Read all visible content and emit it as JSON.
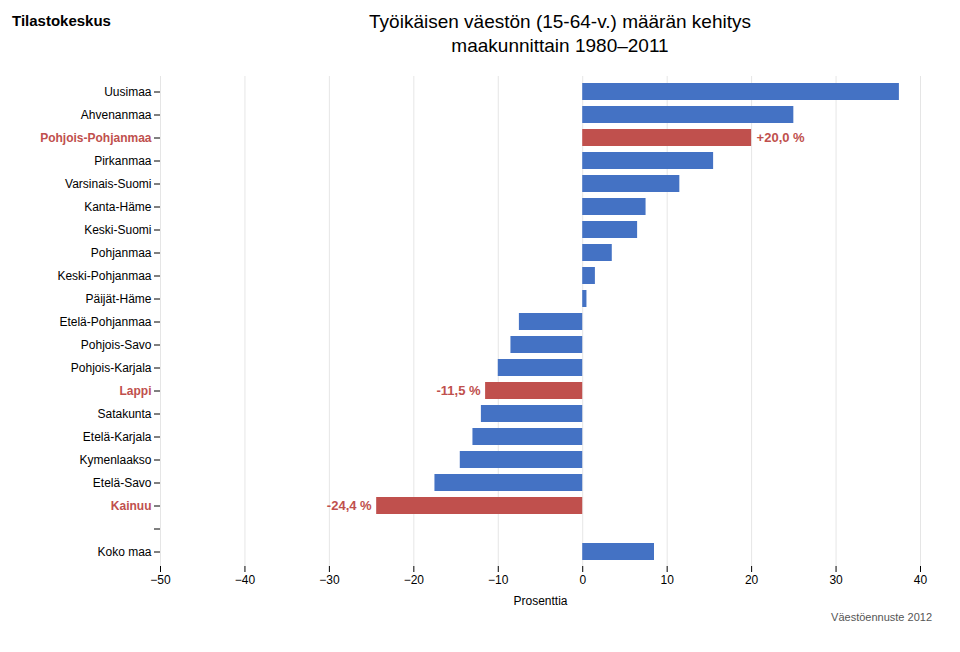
{
  "chart_data": {
    "type": "bar",
    "orientation": "horizontal",
    "title": "Työikäisen väestön (15-64-v.) määrän kehitys",
    "subtitle": "maakunnittain 1980–2011",
    "xlabel": "Prosenttia",
    "footnote": "Väestöennuste 2012",
    "logo": "Tilastokeskus",
    "categories": [
      "Uusimaa",
      "Ahvenanmaa",
      "Pohjois-Pohjanmaa",
      "Pirkanmaa",
      "Varsinais-Suomi",
      "Kanta-Häme",
      "Keski-Suomi",
      "Pohjanmaa",
      "Keski-Pohjanmaa",
      "Päijät-Häme",
      "Etelä-Pohjanmaa",
      "Pohjois-Savo",
      "Pohjois-Karjala",
      "Lappi",
      "Satakunta",
      "Etelä-Karjala",
      "Kymenlaakso",
      "Etelä-Savo",
      "Kainuu",
      null,
      "Koko maa"
    ],
    "values": [
      37.5,
      25.0,
      20.0,
      15.5,
      11.5,
      7.5,
      6.5,
      3.5,
      1.5,
      0.5,
      -7.5,
      -8.5,
      -10.0,
      -11.5,
      -12.0,
      -13.0,
      -14.5,
      -17.5,
      -24.4,
      0.0,
      8.5
    ],
    "colors": [
      "#4472C4",
      "#4472C4",
      "#C0504D",
      "#4472C4",
      "#4472C4",
      "#4472C4",
      "#4472C4",
      "#4472C4",
      "#4472C4",
      "#4472C4",
      "#4472C4",
      "#4472C4",
      "#4472C4",
      "#C0504D",
      "#4472C4",
      "#4472C4",
      "#4472C4",
      "#4472C4",
      "#C0504D",
      "#ffffff",
      "#4472C4"
    ],
    "annotations": [
      {
        "category": "Pohjois-Pohjanmaa",
        "label": "+20,0 %",
        "value": 20.0
      },
      {
        "category": "Lappi",
        "label": "-11,5 %",
        "value": -11.5
      },
      {
        "category": "Kainuu",
        "label": "-24,4 %",
        "value": -24.4
      }
    ],
    "xlim": [
      -50,
      40
    ],
    "xticks": [
      -50,
      -40,
      -30,
      -20,
      -10,
      0,
      10,
      20,
      30,
      40
    ],
    "grid": true
  }
}
